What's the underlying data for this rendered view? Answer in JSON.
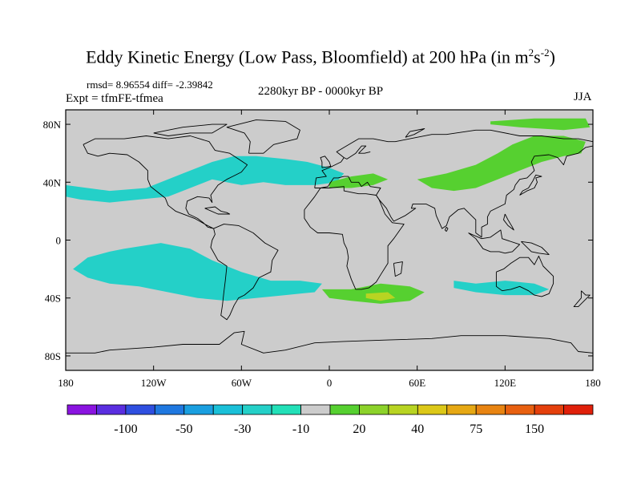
{
  "chart_data": {
    "type": "contour-map",
    "title": "Eddy Kinetic Energy (Low Pass, Bloomfield) at 200 hPa (in m2s-2)",
    "title_main": "Eddy Kinetic Energy (Low Pass, Bloomfield) at 200 hPa (in m",
    "title_exp1": "2",
    "title_mid": "s",
    "title_exp2": "-2",
    "title_close": ")",
    "stats": "rmsd= 8.96554 diff= -2.39842",
    "left_label": "Expt = tfmFE-tfmea",
    "center_label": "2280kyr BP - 0000kyr BP",
    "right_label": "JJA",
    "x_ticks": [
      {
        "lon": -180,
        "label": "180"
      },
      {
        "lon": -120,
        "label": "120W"
      },
      {
        "lon": -60,
        "label": "60W"
      },
      {
        "lon": 0,
        "label": "0"
      },
      {
        "lon": 60,
        "label": "60E"
      },
      {
        "lon": 120,
        "label": "120E"
      },
      {
        "lon": 180,
        "label": "180"
      }
    ],
    "y_ticks": [
      {
        "lat": 80,
        "label": "80N"
      },
      {
        "lat": 40,
        "label": "40N"
      },
      {
        "lat": 0,
        "label": "0"
      },
      {
        "lat": -40,
        "label": "40S"
      },
      {
        "lat": -80,
        "label": "80S"
      }
    ],
    "lon_range": [
      -180,
      180
    ],
    "lat_range": [
      -90,
      90
    ],
    "colorbar": {
      "colors": [
        "#8a14e0",
        "#5a2ee0",
        "#2f4fe0",
        "#1f78e0",
        "#1a9fe0",
        "#1ac0d8",
        "#24d0c8",
        "#22e0b8",
        "#cccccc",
        "#56d030",
        "#8cd22a",
        "#b8d422",
        "#dcc818",
        "#e6a814",
        "#e88412",
        "#e86010",
        "#e4400c",
        "#e0200a"
      ],
      "labels": [
        {
          "after_index": 1,
          "text": "-100"
        },
        {
          "after_index": 3,
          "text": "-50"
        },
        {
          "after_index": 5,
          "text": "-30"
        },
        {
          "after_index": 7,
          "text": "-10"
        },
        {
          "after_index": 9,
          "text": "20"
        },
        {
          "after_index": 11,
          "text": "40"
        },
        {
          "after_index": 13,
          "text": "75"
        },
        {
          "after_index": 15,
          "text": "150"
        }
      ]
    },
    "anomaly_regions": [
      {
        "name": "north-atlantic-pacific-band",
        "level": -10,
        "color": "#24d0c8",
        "polygon": [
          [
            -180,
            38
          ],
          [
            -150,
            34
          ],
          [
            -125,
            36
          ],
          [
            -100,
            46
          ],
          [
            -80,
            54
          ],
          [
            -65,
            58
          ],
          [
            -50,
            58
          ],
          [
            -30,
            56
          ],
          [
            -15,
            54
          ],
          [
            0,
            50
          ],
          [
            10,
            46
          ],
          [
            5,
            40
          ],
          [
            -10,
            38
          ],
          [
            -30,
            38
          ],
          [
            -45,
            40
          ],
          [
            -60,
            38
          ],
          [
            -80,
            42
          ],
          [
            -95,
            36
          ],
          [
            -110,
            30
          ],
          [
            -130,
            28
          ],
          [
            -150,
            26
          ],
          [
            -170,
            28
          ],
          [
            -180,
            30
          ]
        ]
      },
      {
        "name": "south-pacific-atlantic-band",
        "level": -10,
        "color": "#24d0c8",
        "polygon": [
          [
            -140,
            -6
          ],
          [
            -115,
            -2
          ],
          [
            -95,
            -6
          ],
          [
            -80,
            -14
          ],
          [
            -60,
            -22
          ],
          [
            -40,
            -28
          ],
          [
            -20,
            -28
          ],
          [
            -5,
            -30
          ],
          [
            -10,
            -36
          ],
          [
            -30,
            -38
          ],
          [
            -50,
            -40
          ],
          [
            -70,
            -42
          ],
          [
            -90,
            -40
          ],
          [
            -110,
            -36
          ],
          [
            -130,
            -32
          ],
          [
            -150,
            -30
          ],
          [
            -165,
            -26
          ],
          [
            -175,
            -20
          ],
          [
            -165,
            -12
          ],
          [
            -150,
            -8
          ]
        ]
      },
      {
        "name": "indian-ocean-band",
        "level": -10,
        "color": "#24d0c8",
        "polygon": [
          [
            85,
            -28
          ],
          [
            100,
            -30
          ],
          [
            120,
            -28
          ],
          [
            140,
            -30
          ],
          [
            150,
            -34
          ],
          [
            140,
            -38
          ],
          [
            120,
            -38
          ],
          [
            100,
            -36
          ],
          [
            85,
            -33
          ]
        ]
      },
      {
        "name": "siberia-pacific-band",
        "level": 10,
        "color": "#56d030",
        "polygon": [
          [
            60,
            42
          ],
          [
            80,
            46
          ],
          [
            100,
            52
          ],
          [
            115,
            60
          ],
          [
            125,
            66
          ],
          [
            140,
            72
          ],
          [
            160,
            72
          ],
          [
            175,
            68
          ],
          [
            172,
            60
          ],
          [
            160,
            58
          ],
          [
            145,
            54
          ],
          [
            130,
            48
          ],
          [
            115,
            42
          ],
          [
            100,
            36
          ],
          [
            85,
            34
          ],
          [
            70,
            36
          ]
        ]
      },
      {
        "name": "arctic-band",
        "level": 10,
        "color": "#56d030",
        "polygon": [
          [
            110,
            82
          ],
          [
            140,
            84
          ],
          [
            175,
            84
          ],
          [
            178,
            78
          ],
          [
            160,
            76
          ],
          [
            130,
            78
          ],
          [
            110,
            80
          ]
        ]
      },
      {
        "name": "mediterranean-band",
        "level": 10,
        "color": "#56d030",
        "polygon": [
          [
            0,
            40
          ],
          [
            15,
            44
          ],
          [
            30,
            46
          ],
          [
            40,
            42
          ],
          [
            30,
            38
          ],
          [
            15,
            36
          ],
          [
            0,
            36
          ]
        ]
      },
      {
        "name": "south-atlantic-indian-band",
        "level": 10,
        "color": "#56d030",
        "polygon": [
          [
            -5,
            -34
          ],
          [
            15,
            -34
          ],
          [
            35,
            -30
          ],
          [
            55,
            -32
          ],
          [
            65,
            -36
          ],
          [
            55,
            -42
          ],
          [
            35,
            -44
          ],
          [
            15,
            -42
          ],
          [
            0,
            -40
          ]
        ]
      },
      {
        "name": "south-atlantic-core",
        "level": 20,
        "color": "#b8d422",
        "polygon": [
          [
            25,
            -37
          ],
          [
            40,
            -36
          ],
          [
            45,
            -40
          ],
          [
            35,
            -42
          ],
          [
            25,
            -40
          ]
        ]
      }
    ]
  }
}
